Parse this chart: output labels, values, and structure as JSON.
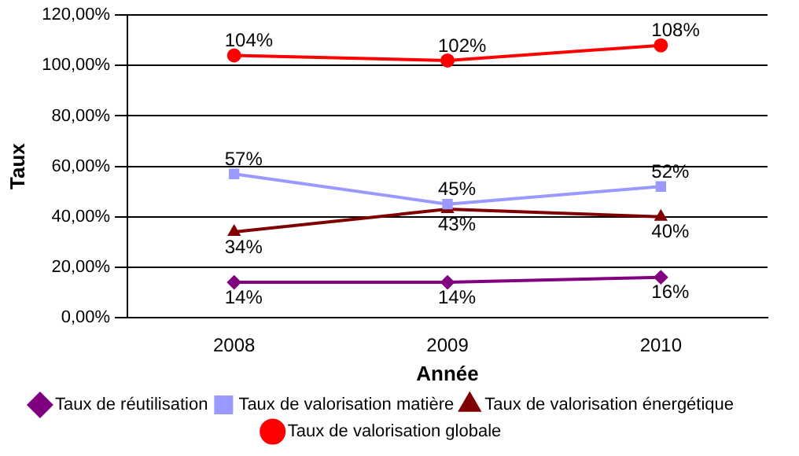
{
  "chart_data": {
    "type": "line",
    "xlabel": "Année",
    "ylabel": "Taux",
    "categories": [
      "2008",
      "2009",
      "2010"
    ],
    "ylim": [
      0,
      120
    ],
    "yticks": [
      {
        "value": 0,
        "label": "0,00%"
      },
      {
        "value": 20,
        "label": "20,00%"
      },
      {
        "value": 40,
        "label": "40,00%"
      },
      {
        "value": 60,
        "label": "60,00%"
      },
      {
        "value": 80,
        "label": "80,00%"
      },
      {
        "value": 100,
        "label": "100,00%"
      },
      {
        "value": 120,
        "label": "120,00%"
      }
    ],
    "grid": "y",
    "legend": "bottom",
    "line_style": "solid",
    "series": [
      {
        "name": "Taux de réutilisation",
        "color": "#800080",
        "marker": "diamond",
        "values": [
          14,
          14,
          16
        ],
        "value_labels": [
          "14%",
          "14%",
          "16%"
        ]
      },
      {
        "name": "Taux de valorisation matière",
        "color": "#9999ff",
        "marker": "square",
        "values": [
          57,
          45,
          52
        ],
        "value_labels": [
          "57%",
          "45%",
          "52%"
        ]
      },
      {
        "name": "Taux de valorisation énergétique",
        "color": "#800000",
        "marker": "triangle",
        "values": [
          34,
          43,
          40
        ],
        "value_labels": [
          "34%",
          "43%",
          "40%"
        ]
      },
      {
        "name": "Taux de valorisation globale",
        "color": "#ff0000",
        "marker": "circle",
        "values": [
          104,
          102,
          108
        ],
        "value_labels": [
          "104%",
          "102%",
          "108%"
        ]
      }
    ]
  }
}
